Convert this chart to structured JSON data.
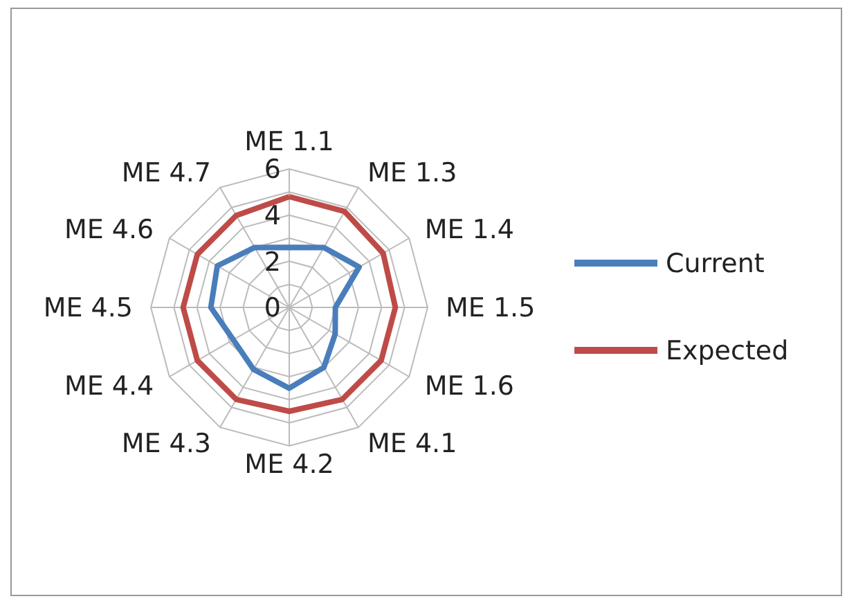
{
  "chart_data": {
    "type": "radar",
    "categories": [
      "ME 1.1",
      "ME 1.3",
      "ME 1.4",
      "ME 1.5",
      "ME 1.6",
      "ME 4.1",
      "ME 4.2",
      "ME 4.3",
      "ME 4.4",
      "ME 4.5",
      "ME 4.6",
      "ME 4.7"
    ],
    "series": [
      {
        "name": "Current",
        "color": "#4a7ebb",
        "values": [
          2.6,
          3.0,
          3.5,
          2.0,
          2.3,
          3.0,
          3.5,
          3.1,
          2.8,
          3.4,
          3.6,
          3.0
        ]
      },
      {
        "name": "Expected",
        "color": "#be4b48",
        "values": [
          4.8,
          4.8,
          4.7,
          4.6,
          4.6,
          4.6,
          4.5,
          4.6,
          4.6,
          4.6,
          4.6,
          4.6
        ]
      }
    ],
    "ylim": [
      0,
      6
    ],
    "yticks": [
      0,
      2,
      4,
      6
    ],
    "grid": true,
    "legend": "right"
  }
}
